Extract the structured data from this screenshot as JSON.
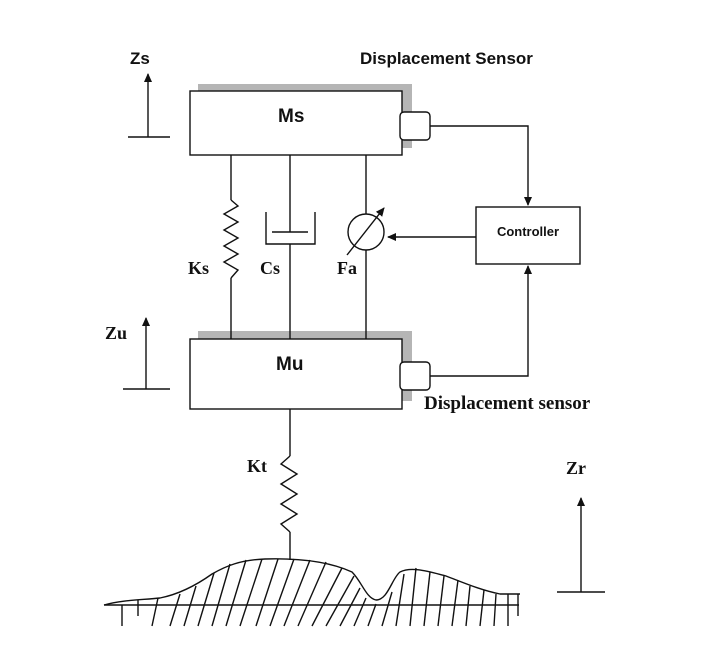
{
  "labels": {
    "zs": "Zs",
    "zu": "Zu",
    "zr": "Zr",
    "sprung_mass": "Ms",
    "unsprung_mass": "Mu",
    "ks": "Ks",
    "cs": "Cs",
    "fa": "Fa",
    "kt": "Kt",
    "controller": "Controller",
    "displacement_sensor_top": "Displacement Sensor",
    "displacement_sensor_bottom": "Displacement sensor"
  },
  "colors": {
    "line": "#111111",
    "shadow": "#b5b5b5",
    "background": "#ffffff"
  }
}
